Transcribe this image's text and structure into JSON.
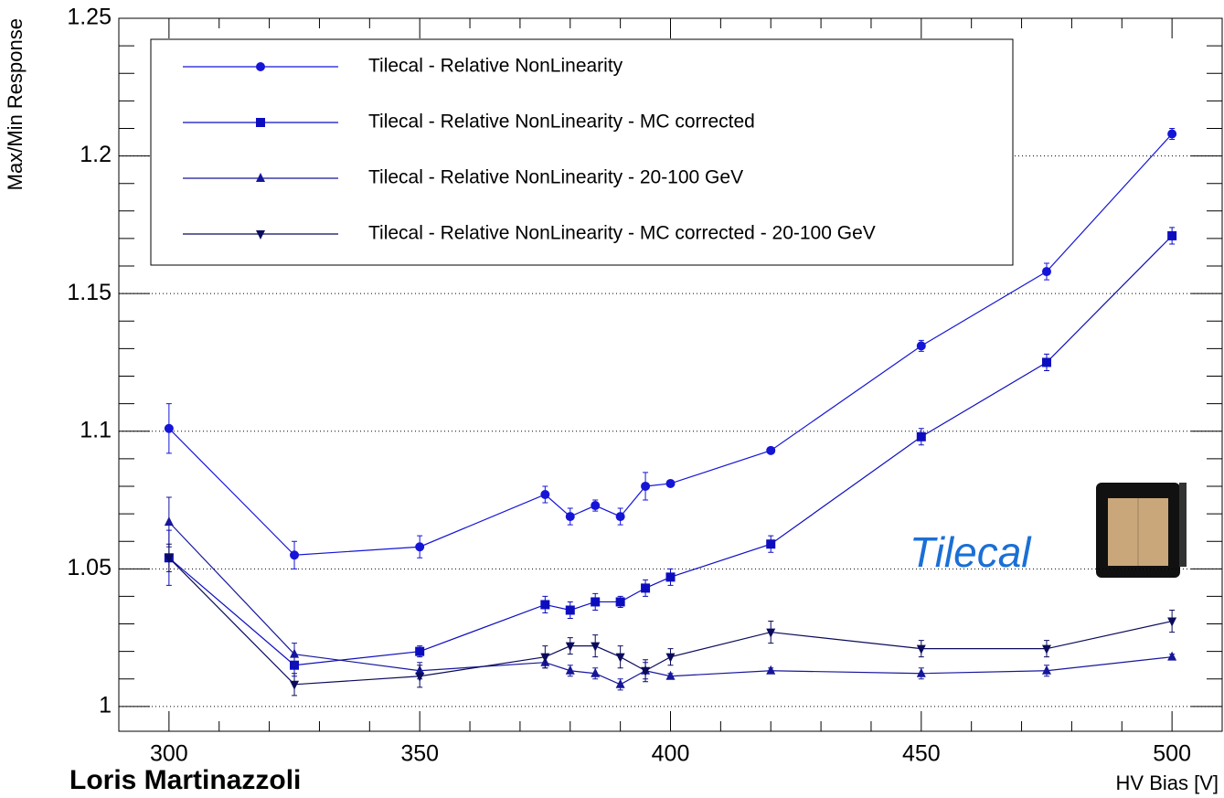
{
  "chart_data": {
    "type": "line",
    "x": [
      300,
      325,
      350,
      375,
      380,
      385,
      390,
      395,
      400,
      420,
      450,
      475,
      500
    ],
    "series": [
      {
        "name": "Tilecal - Relative NonLinearity",
        "color": "#1515d8",
        "marker": "circle",
        "values": [
          1.101,
          1.055,
          1.058,
          1.077,
          1.069,
          1.073,
          1.069,
          1.08,
          1.081,
          1.093,
          1.131,
          1.158,
          1.208
        ],
        "errors": [
          0.009,
          0.005,
          0.004,
          0.003,
          0.003,
          0.002,
          0.003,
          0.005,
          0.001,
          0.001,
          0.002,
          0.003,
          0.002
        ]
      },
      {
        "name": "Tilecal - Relative NonLinearity - MC corrected",
        "color": "#0d0dc0",
        "marker": "square",
        "values": [
          1.054,
          1.015,
          1.02,
          1.037,
          1.035,
          1.038,
          1.038,
          1.043,
          1.047,
          1.059,
          1.098,
          1.125,
          1.171
        ],
        "errors": [
          0.01,
          0.004,
          0.002,
          0.003,
          0.003,
          0.003,
          0.002,
          0.003,
          0.003,
          0.003,
          0.003,
          0.003,
          0.003
        ]
      },
      {
        "name": "Tilecal - Relative NonLinearity - 20-100 GeV",
        "color": "#16169c",
        "marker": "triangle-up",
        "values": [
          1.067,
          1.019,
          1.013,
          1.016,
          1.013,
          1.012,
          1.008,
          1.013,
          1.011,
          1.013,
          1.012,
          1.013,
          1.018
        ],
        "errors": [
          0.009,
          0.004,
          0.003,
          0.002,
          0.002,
          0.002,
          0.002,
          0.003,
          0.001,
          0.001,
          0.002,
          0.002,
          0.001
        ]
      },
      {
        "name": "Tilecal - Relative NonLinearity - MC corrected - 20-100 GeV",
        "color": "#0b0b5c",
        "marker": "triangle-down",
        "values": [
          1.054,
          1.008,
          1.011,
          1.018,
          1.022,
          1.022,
          1.018,
          1.013,
          1.018,
          1.027,
          1.021,
          1.021,
          1.031
        ],
        "errors": [
          0.005,
          0.004,
          0.004,
          0.004,
          0.003,
          0.004,
          0.004,
          0.004,
          0.003,
          0.004,
          0.003,
          0.003,
          0.004
        ]
      }
    ],
    "xlabel": "HV Bias [V]",
    "ylabel": "Max/Min Response",
    "annotations": [
      "Tilecal",
      "Loris Martinazzoli"
    ],
    "xlim": [
      290,
      510
    ],
    "ylim": [
      0.991,
      1.25
    ],
    "xticks": [
      300,
      350,
      400,
      450,
      500
    ],
    "xminorticks": [
      290,
      310,
      320,
      330,
      340,
      360,
      370,
      380,
      390,
      410,
      420,
      430,
      440,
      460,
      470,
      480,
      490,
      510
    ],
    "yticks": [
      1,
      1.05,
      1.1,
      1.15,
      1.2,
      1.25
    ],
    "yminorticks": [
      1.01,
      1.02,
      1.03,
      1.04,
      1.06,
      1.07,
      1.08,
      1.09,
      1.11,
      1.12,
      1.13,
      1.14,
      1.16,
      1.17,
      1.18,
      1.19,
      1.21,
      1.22,
      1.23,
      1.24
    ],
    "grid": "y",
    "legend": "top-left"
  }
}
